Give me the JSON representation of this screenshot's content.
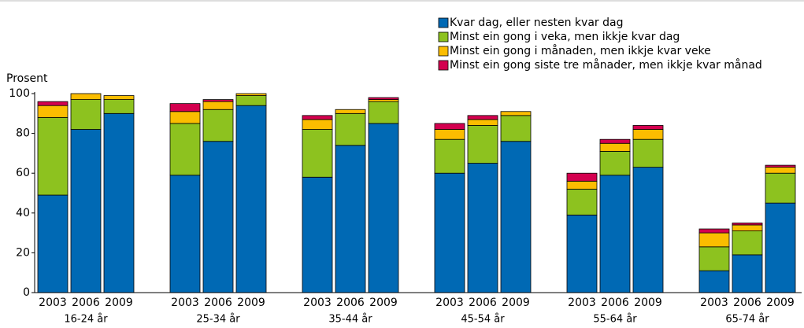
{
  "chart_data": {
    "type": "stacked_bar",
    "y_label": "Prosent",
    "categories": [
      "2003",
      "2006",
      "2009",
      "2003",
      "2006",
      "2009",
      "2003",
      "2006",
      "2009",
      "2003",
      "2006",
      "2009",
      "2003",
      "2006",
      "2009",
      "2003",
      "2006",
      "2009"
    ],
    "groups": [
      "16-24 år",
      "25-34 år",
      "35-44 år",
      "45-54 år",
      "55-64 år",
      "65-74 år"
    ],
    "series": [
      {
        "name": "Kvar dag, eller nesten kvar dag",
        "color": "#0069b4",
        "values": [
          49,
          82,
          90,
          59,
          76,
          94,
          58,
          74,
          85,
          60,
          65,
          76,
          39,
          59,
          63,
          11,
          19,
          45
        ]
      },
      {
        "name": "Minst ein gong i veka, men ikkje kvar dag",
        "color": "#8dc21f",
        "values": [
          39,
          15,
          7,
          26,
          16,
          5,
          24,
          16,
          11,
          17,
          19,
          13,
          13,
          12,
          14,
          12,
          12,
          15
        ]
      },
      {
        "name": "Minst ein gong i månaden, men ikkje kvar veke",
        "color": "#fbbd00",
        "values": [
          6,
          3,
          2,
          6,
          4,
          1,
          5,
          2,
          1,
          5,
          3,
          2,
          4,
          4,
          5,
          7,
          3,
          3
        ]
      },
      {
        "name": "Minst ein gong siste tre månader, men ikkje kvar månad",
        "color": "#d4004f",
        "values": [
          2,
          0,
          0,
          4,
          1,
          0,
          2,
          0,
          1,
          3,
          2,
          0,
          4,
          2,
          2,
          2,
          1,
          1
        ]
      }
    ],
    "ylim": [
      0,
      100
    ],
    "yticks": [
      0,
      20,
      40,
      60,
      80,
      100
    ],
    "legend": "top-right"
  }
}
